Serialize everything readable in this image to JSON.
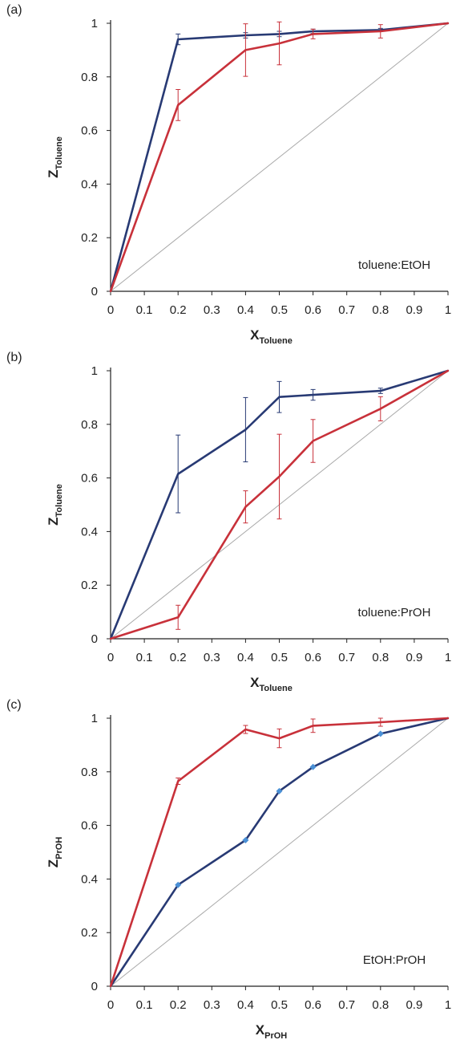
{
  "colors": {
    "navy": "#283a74",
    "red": "#c8313a",
    "diag": "#a9a9a9",
    "marker": "#4a90d6",
    "axis": "#222222"
  },
  "chart_data": [
    {
      "panel": "(a)",
      "type": "line",
      "annotation": "toluene:EtOH",
      "xlabel": "X",
      "xlabel_sub": "Toluene",
      "ylabel": "Z",
      "ylabel_sub": "Toluene",
      "xlim": [
        0,
        1
      ],
      "ylim": [
        0,
        1
      ],
      "x_ticks": [
        "0",
        "0.1",
        "0.2",
        "0.3",
        "0.4",
        "0.5",
        "0.6",
        "0.7",
        "0.8",
        "0.9",
        "1"
      ],
      "y_ticks": [
        "0",
        "0.2",
        "0.4",
        "0.6",
        "0.8",
        "1"
      ],
      "grid": false,
      "diagonal": true,
      "series": [
        {
          "color": "#283a74",
          "markers": false,
          "x": [
            0,
            0.2,
            0.4,
            0.5,
            0.6,
            0.8,
            1
          ],
          "y": [
            0,
            0.94,
            0.955,
            0.96,
            0.97,
            0.975,
            1
          ],
          "err": [
            0,
            0.02,
            0.01,
            0.01,
            0.008,
            0.006,
            0
          ]
        },
        {
          "color": "#c8313a",
          "markers": false,
          "x": [
            0,
            0.2,
            0.4,
            0.5,
            0.6,
            0.8,
            1
          ],
          "y": [
            0,
            0.695,
            0.9,
            0.925,
            0.96,
            0.97,
            1
          ],
          "err": [
            0,
            0.058,
            0.098,
            0.08,
            0.018,
            0.025,
            0
          ]
        }
      ]
    },
    {
      "panel": "(b)",
      "type": "line",
      "annotation": "toluene:PrOH",
      "xlabel": "X",
      "xlabel_sub": "Toluene",
      "ylabel": "Z",
      "ylabel_sub": "Toluene",
      "xlim": [
        0,
        1
      ],
      "ylim": [
        0,
        1
      ],
      "x_ticks": [
        "0",
        "0.1",
        "0.2",
        "0.3",
        "0.4",
        "0.5",
        "0.6",
        "0.7",
        "0.8",
        "0.9",
        "1"
      ],
      "y_ticks": [
        "0",
        "0.2",
        "0.4",
        "0.6",
        "0.8",
        "1"
      ],
      "grid": false,
      "diagonal": true,
      "series": [
        {
          "color": "#283a74",
          "markers": false,
          "x": [
            0,
            0.2,
            0.4,
            0.5,
            0.6,
            0.8,
            1
          ],
          "y": [
            0,
            0.615,
            0.78,
            0.902,
            0.91,
            0.925,
            1
          ],
          "err": [
            0,
            0.145,
            0.12,
            0.058,
            0.02,
            0.01,
            0
          ]
        },
        {
          "color": "#c8313a",
          "markers": false,
          "x": [
            0,
            0.2,
            0.4,
            0.5,
            0.6,
            0.8,
            1
          ],
          "y": [
            0,
            0.08,
            0.492,
            0.605,
            0.738,
            0.858,
            1
          ],
          "err": [
            0,
            0.045,
            0.06,
            0.158,
            0.08,
            0.045,
            0
          ]
        }
      ]
    },
    {
      "panel": "(c)",
      "type": "line",
      "annotation": "EtOH:PrOH",
      "xlabel": "X",
      "xlabel_sub": "PrOH",
      "ylabel": "Z",
      "ylabel_sub": "PrOH",
      "xlim": [
        0,
        1
      ],
      "ylim": [
        0,
        1
      ],
      "x_ticks": [
        "0",
        "0.1",
        "0.2",
        "0.3",
        "0.4",
        "0.5",
        "0.6",
        "0.7",
        "0.8",
        "0.9",
        "1"
      ],
      "y_ticks": [
        "0",
        "0.2",
        "0.4",
        "0.6",
        "0.8",
        "1"
      ],
      "grid": false,
      "diagonal": true,
      "series": [
        {
          "color": "#283a74",
          "markers": true,
          "x": [
            0,
            0.2,
            0.4,
            0.5,
            0.6,
            0.8,
            1
          ],
          "y": [
            0,
            0.378,
            0.545,
            0.728,
            0.818,
            0.942,
            1
          ],
          "err": [
            0,
            0,
            0,
            0,
            0,
            0,
            0
          ]
        },
        {
          "color": "#c8313a",
          "markers": false,
          "x": [
            0,
            0.2,
            0.4,
            0.5,
            0.6,
            0.8,
            1
          ],
          "y": [
            0,
            0.765,
            0.958,
            0.925,
            0.972,
            0.985,
            1
          ],
          "err": [
            0,
            0.012,
            0.015,
            0.035,
            0.025,
            0.015,
            0
          ]
        }
      ]
    }
  ]
}
